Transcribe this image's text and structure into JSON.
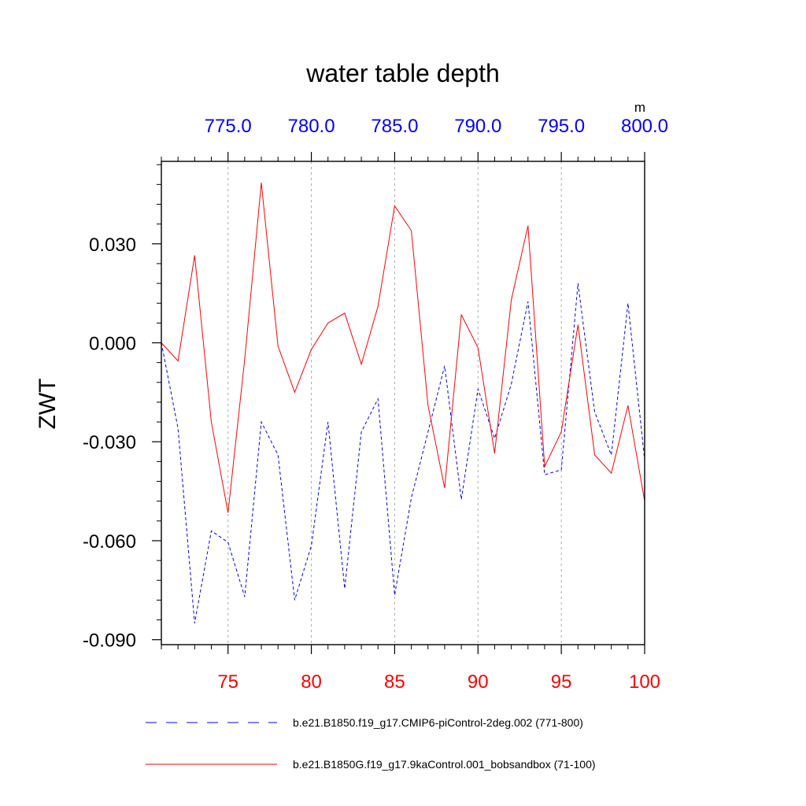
{
  "chart_data": {
    "type": "line",
    "title": "water table depth",
    "ylabel": "ZWT",
    "ylim": [
      -0.0915,
      0.055
    ],
    "y_ticks": [
      0.03,
      0.0,
      -0.03,
      -0.06,
      -0.09
    ],
    "y_tick_labels": [
      "0.030",
      "0.000",
      "-0.030",
      "-0.060",
      "-0.090"
    ],
    "bottom_axis": {
      "range": [
        71,
        100
      ],
      "ticks": [
        75,
        80,
        85,
        90,
        95,
        100
      ],
      "tick_labels": [
        "75",
        "80",
        "85",
        "90",
        "95",
        "100"
      ],
      "color": "#ff0000"
    },
    "top_axis": {
      "range": [
        771,
        800
      ],
      "ticks": [
        775,
        780,
        785,
        790,
        795,
        800
      ],
      "tick_labels": [
        "775.0",
        "780.0",
        "785.0",
        "790.0",
        "795.0",
        "800.0"
      ],
      "unit_label": "m",
      "color": "#0000ff"
    },
    "grid": "vertical-dashed",
    "series": [
      {
        "name": "b.e21.B1850.f19_g17.CMIP6-piControl-2deg.002 (771-800)",
        "color": "#0000ff",
        "style": "dashed",
        "x": [
          771,
          772,
          773,
          774,
          775,
          776,
          777,
          778,
          779,
          780,
          781,
          782,
          783,
          784,
          785,
          786,
          787,
          788,
          789,
          790,
          791,
          792,
          793,
          794,
          795,
          796,
          797,
          798,
          799,
          800
        ],
        "values": [
          0.0,
          -0.026,
          -0.085,
          -0.057,
          -0.0605,
          -0.077,
          -0.024,
          -0.034,
          -0.078,
          -0.0615,
          -0.024,
          -0.0745,
          -0.027,
          -0.017,
          -0.0765,
          -0.047,
          -0.027,
          -0.007,
          -0.0475,
          -0.014,
          -0.029,
          -0.0125,
          0.0125,
          -0.04,
          -0.0385,
          0.018,
          -0.021,
          -0.034,
          0.012,
          -0.0355
        ]
      },
      {
        "name": "b.e21.B1850G.f19_g17.9kaControl.001_bobsandbox (71-100)",
        "color": "#ff0000",
        "style": "solid",
        "x": [
          71,
          72,
          73,
          74,
          75,
          76,
          77,
          78,
          79,
          80,
          81,
          82,
          83,
          84,
          85,
          86,
          87,
          88,
          89,
          90,
          91,
          92,
          93,
          94,
          95,
          96,
          97,
          98,
          99,
          100
        ],
        "values": [
          0.0,
          -0.0055,
          0.0265,
          -0.024,
          -0.0515,
          -0.005,
          0.0485,
          -0.001,
          -0.015,
          -0.002,
          0.006,
          0.009,
          -0.0065,
          0.011,
          0.0415,
          0.034,
          -0.019,
          -0.044,
          0.0085,
          -0.0015,
          -0.0335,
          0.013,
          0.0355,
          -0.0375,
          -0.027,
          0.0055,
          -0.034,
          -0.0395,
          -0.019,
          -0.048
        ]
      }
    ]
  }
}
